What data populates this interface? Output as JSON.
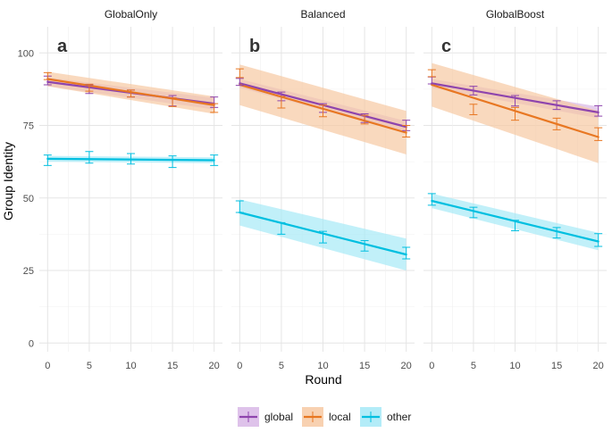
{
  "chart_data": {
    "type": "line",
    "xlabel": "Round",
    "ylabel": "Group Identity",
    "x_ticks": [
      0,
      5,
      10,
      15,
      20
    ],
    "y_ticks": [
      0,
      25,
      50,
      75,
      100
    ],
    "xlim": [
      -1,
      21
    ],
    "ylim": [
      -3,
      109
    ],
    "legend": {
      "position": "bottom",
      "entries": [
        {
          "name": "global",
          "color": "#8E44AD",
          "fill": "#D8B7E6"
        },
        {
          "name": "local",
          "color": "#E87722",
          "fill": "#F7C9A3"
        },
        {
          "name": "other",
          "color": "#00BFE0",
          "fill": "#A6E9F7"
        }
      ]
    },
    "panels": [
      {
        "title": "GlobalOnly",
        "letter": "a",
        "series": [
          {
            "name": "global",
            "x": [
              0,
              5,
              10,
              15,
              20
            ],
            "means": [
              90.5,
              87.5,
              86,
              83.5,
              83
            ],
            "err": [
              1.5,
              1.5,
              1.2,
              1.8,
              1.8
            ],
            "fit": [
              90,
              82.5
            ],
            "band": [
              [
                88.5,
                91.5
              ],
              [
                80.5,
                84.5
              ]
            ]
          },
          {
            "name": "local",
            "x": [
              0,
              5,
              10,
              15,
              20
            ],
            "means": [
              92,
              88,
              86,
              83,
              81
            ],
            "err": [
              1.2,
              1.2,
              1.2,
              1.5,
              1.5
            ],
            "fit": [
              91,
              82
            ],
            "band": [
              [
                88.5,
                93.5
              ],
              [
                79,
                85
              ]
            ]
          },
          {
            "name": "other",
            "x": [
              0,
              5,
              10,
              15,
              20
            ],
            "means": [
              63,
              64,
              63.5,
              62.5,
              63
            ],
            "err": [
              1.8,
              2,
              1.8,
              2,
              1.8
            ],
            "fit": [
              63.5,
              63
            ],
            "band": [
              [
                62.5,
                64.5
              ],
              [
                62,
                64
              ]
            ]
          }
        ]
      },
      {
        "title": "Balanced",
        "letter": "b",
        "series": [
          {
            "name": "global",
            "x": [
              0,
              5,
              10,
              15,
              20
            ],
            "means": [
              90,
              85,
              81,
              77.5,
              75
            ],
            "err": [
              1.2,
              1.5,
              1.5,
              1.5,
              1.8
            ],
            "fit": [
              89.5,
              74.5
            ],
            "band": [
              [
                88,
                91
              ],
              [
                72.5,
                76.5
              ]
            ]
          },
          {
            "name": "local",
            "x": [
              0,
              5,
              10,
              15,
              20
            ],
            "means": [
              93,
              83,
              80,
              77,
              73
            ],
            "err": [
              1.5,
              2,
              2,
              1.5,
              2
            ],
            "fit": [
              89,
              72.5
            ],
            "band": [
              [
                82,
                96
              ],
              [
                65,
                80
              ]
            ]
          },
          {
            "name": "other",
            "x": [
              0,
              5,
              10,
              15,
              20
            ],
            "means": [
              47,
              39.5,
              36.5,
              33.5,
              31
            ],
            "err": [
              2,
              2,
              2,
              1.8,
              2
            ],
            "fit": [
              45,
              30.5
            ],
            "band": [
              [
                40.5,
                49.5
              ],
              [
                25,
                36
              ]
            ]
          }
        ]
      },
      {
        "title": "GlobalBoost",
        "letter": "c",
        "series": [
          {
            "name": "global",
            "x": [
              0,
              5,
              10,
              15,
              20
            ],
            "means": [
              90.5,
              87,
              83.5,
              82,
              80
            ],
            "err": [
              1.2,
              1.5,
              1.8,
              1.5,
              1.8
            ],
            "fit": [
              89.5,
              79.5
            ],
            "band": [
              [
                88,
                91
              ],
              [
                77.5,
                81.5
              ]
            ]
          },
          {
            "name": "local",
            "x": [
              0,
              5,
              10,
              15,
              20
            ],
            "means": [
              93,
              80.5,
              79,
              75.5,
              72
            ],
            "err": [
              1.2,
              1.8,
              2.2,
              2,
              2.2
            ],
            "fit": [
              89,
              71
            ],
            "band": [
              [
                81.5,
                96.5
              ],
              [
                62,
                80
              ]
            ]
          },
          {
            "name": "other",
            "x": [
              0,
              5,
              10,
              15,
              20
            ],
            "means": [
              49.5,
              45,
              40.5,
              38,
              35.5
            ],
            "err": [
              2,
              1.8,
              1.8,
              1.8,
              2.2
            ],
            "fit": [
              49,
              35
            ],
            "band": [
              [
                46.5,
                51.5
              ],
              [
                32,
                38
              ]
            ]
          }
        ]
      }
    ]
  }
}
